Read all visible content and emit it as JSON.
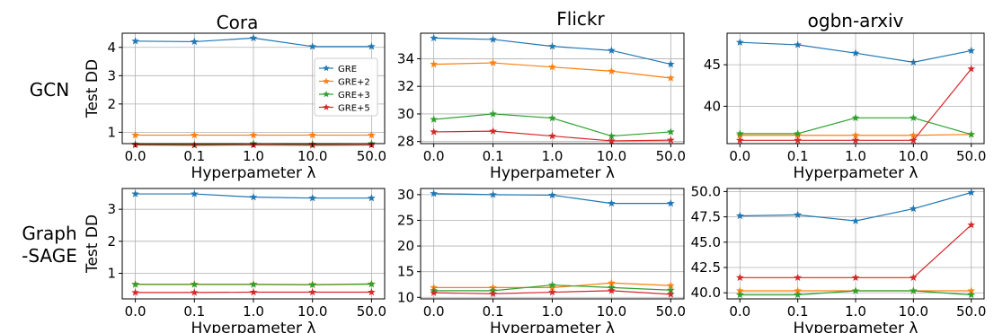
{
  "figure": {
    "column_titles": [
      "Cora",
      "Flickr",
      "ogbn-arxiv"
    ],
    "row_labels": [
      [
        "GCN"
      ],
      [
        "Graph",
        "-SAGE"
      ]
    ],
    "colors": {
      "GRE": "#1f77b4",
      "GRE+2": "#ff7f0e",
      "GRE+3": "#2ca02c",
      "GRE+5": "#d62728"
    },
    "legend": {
      "entries": [
        "GRE",
        "GRE+2",
        "GRE+3",
        "GRE+5"
      ],
      "placement": "inside-right of top-left panel"
    }
  },
  "chart_data": [
    {
      "type": "line",
      "row": 0,
      "col": 0,
      "categories": [
        "0.0",
        "0.1",
        "1.0",
        "10.0",
        "50.0"
      ],
      "xlabel": "Hyperpameter λ",
      "ylabel": "Test DD",
      "ylim": [
        0.6,
        4.5
      ],
      "yticks": [
        1,
        2,
        3,
        4
      ],
      "grid": true,
      "legend": true,
      "series": [
        {
          "name": "GRE",
          "values": [
            4.22,
            4.2,
            4.33,
            4.03,
            4.03
          ]
        },
        {
          "name": "GRE+2",
          "values": [
            0.9,
            0.9,
            0.9,
            0.9,
            0.9
          ]
        },
        {
          "name": "GRE+3",
          "values": [
            0.58,
            0.56,
            0.6,
            0.58,
            0.6
          ]
        },
        {
          "name": "GRE+5",
          "values": [
            0.55,
            0.54,
            0.55,
            0.54,
            0.55
          ]
        }
      ]
    },
    {
      "type": "line",
      "row": 0,
      "col": 1,
      "categories": [
        "0.0",
        "0.1",
        "1.0",
        "10.0",
        "50.0"
      ],
      "xlabel": "Hyperpameter λ",
      "ylabel": "",
      "ylim": [
        27.85,
        35.85
      ],
      "yticks": [
        28,
        30,
        32,
        34
      ],
      "grid": true,
      "series": [
        {
          "name": "GRE",
          "values": [
            35.5,
            35.4,
            34.9,
            34.6,
            33.6
          ]
        },
        {
          "name": "GRE+2",
          "values": [
            33.6,
            33.7,
            33.4,
            33.1,
            32.6
          ]
        },
        {
          "name": "GRE+3",
          "values": [
            29.6,
            30.0,
            29.7,
            28.4,
            28.7
          ]
        },
        {
          "name": "GRE+5",
          "values": [
            28.7,
            28.75,
            28.4,
            28.05,
            28.1
          ]
        }
      ]
    },
    {
      "type": "line",
      "row": 0,
      "col": 2,
      "categories": [
        "0.0",
        "0.1",
        "1.0",
        "10.0",
        "50.0"
      ],
      "xlabel": "Hyperpameter λ",
      "ylabel": "",
      "ylim": [
        35.5,
        48.8
      ],
      "yticks": [
        40,
        45
      ],
      "grid": true,
      "series": [
        {
          "name": "GRE",
          "values": [
            47.7,
            47.4,
            46.4,
            45.3,
            46.7
          ]
        },
        {
          "name": "GRE+2",
          "values": [
            36.5,
            36.5,
            36.5,
            36.5,
            36.6
          ]
        },
        {
          "name": "GRE+3",
          "values": [
            36.7,
            36.7,
            38.6,
            38.6,
            36.6
          ]
        },
        {
          "name": "GRE+5",
          "values": [
            35.9,
            35.9,
            35.9,
            35.9,
            44.5
          ]
        }
      ]
    },
    {
      "type": "line",
      "row": 1,
      "col": 0,
      "categories": [
        "0.0",
        "0.1",
        "1.0",
        "10.0",
        "50.0"
      ],
      "xlabel": "Hyperpameter λ",
      "ylabel": "Test DD",
      "ylim": [
        0.2,
        3.65
      ],
      "yticks": [
        1,
        2,
        3
      ],
      "grid": true,
      "series": [
        {
          "name": "GRE",
          "values": [
            3.48,
            3.48,
            3.38,
            3.35,
            3.35
          ]
        },
        {
          "name": "GRE+2",
          "values": [
            0.66,
            0.66,
            0.66,
            0.65,
            0.67
          ]
        },
        {
          "name": "GRE+3",
          "values": [
            0.65,
            0.65,
            0.65,
            0.64,
            0.66
          ]
        },
        {
          "name": "GRE+5",
          "values": [
            0.4,
            0.4,
            0.41,
            0.41,
            0.41
          ]
        }
      ]
    },
    {
      "type": "line",
      "row": 1,
      "col": 1,
      "categories": [
        "0.0",
        "0.1",
        "1.0",
        "10.0",
        "50.0"
      ],
      "xlabel": "Hyperpameter λ",
      "ylabel": "",
      "ylim": [
        9.7,
        31.2
      ],
      "yticks": [
        10,
        15,
        20,
        25,
        30
      ],
      "grid": true,
      "series": [
        {
          "name": "GRE",
          "values": [
            30.2,
            30.0,
            29.9,
            28.3,
            28.3
          ]
        },
        {
          "name": "GRE+2",
          "values": [
            11.9,
            11.9,
            11.9,
            12.8,
            12.3
          ]
        },
        {
          "name": "GRE+3",
          "values": [
            11.3,
            11.3,
            12.4,
            11.9,
            11.4
          ]
        },
        {
          "name": "GRE+5",
          "values": [
            10.9,
            10.7,
            11.0,
            11.3,
            10.6
          ]
        }
      ]
    },
    {
      "type": "line",
      "row": 1,
      "col": 2,
      "categories": [
        "0.0",
        "0.1",
        "1.0",
        "10.0",
        "50.0"
      ],
      "xlabel": "Hyperpameter λ",
      "ylabel": "",
      "ylim": [
        39.4,
        50.3
      ],
      "yticks": [
        40.0,
        42.5,
        45.0,
        47.5,
        50.0
      ],
      "ytick_format": "1dp",
      "grid": true,
      "series": [
        {
          "name": "GRE",
          "values": [
            47.6,
            47.7,
            47.1,
            48.3,
            49.9
          ]
        },
        {
          "name": "GRE+2",
          "values": [
            40.2,
            40.2,
            40.2,
            40.2,
            40.2
          ]
        },
        {
          "name": "GRE+3",
          "values": [
            39.8,
            39.8,
            40.2,
            40.2,
            39.8
          ]
        },
        {
          "name": "GRE+5",
          "values": [
            41.5,
            41.5,
            41.5,
            41.5,
            46.7
          ]
        }
      ]
    }
  ]
}
